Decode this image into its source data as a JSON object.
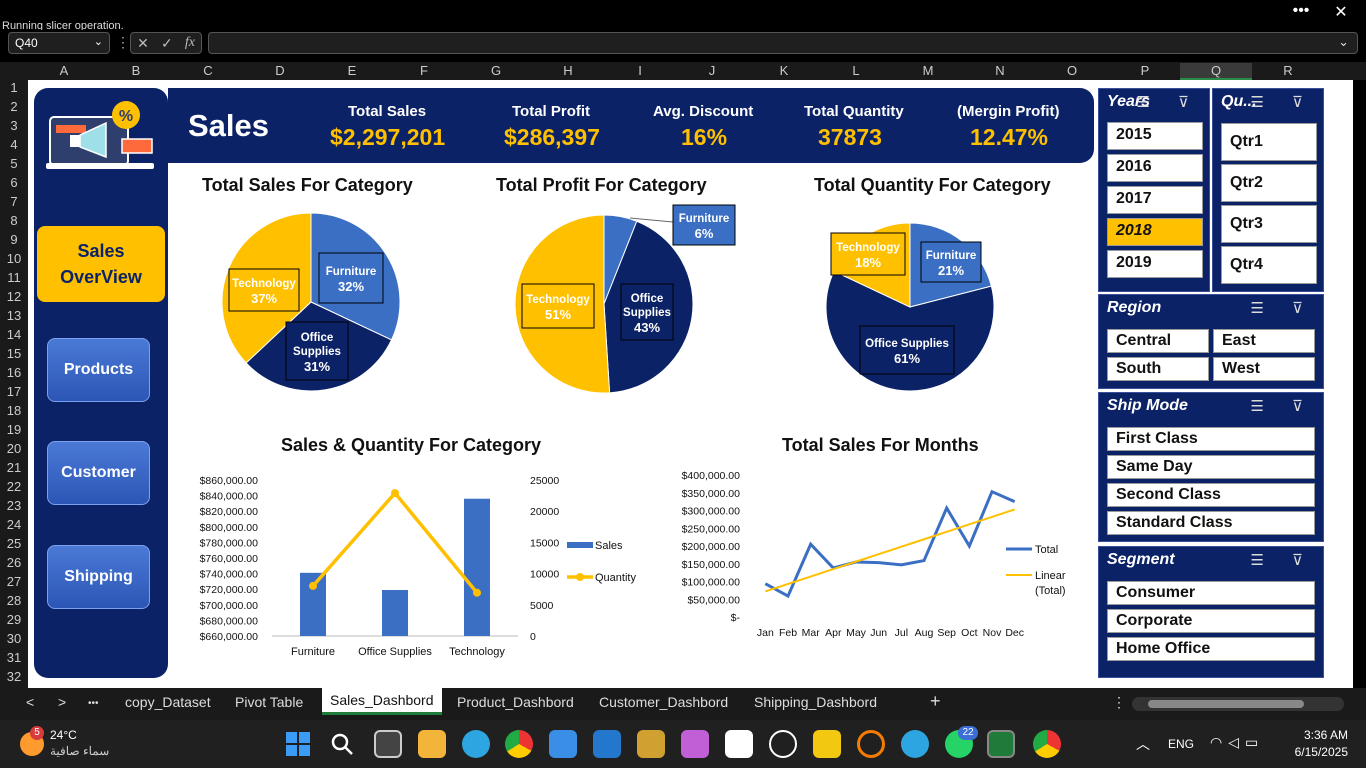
{
  "status": "Running slicer operation.",
  "window": {
    "more": "•••",
    "close": "✕"
  },
  "formula": {
    "namebox": "Q40",
    "dd": "⌄",
    "cancel": "✕",
    "enter": "✓",
    "fx": "fx",
    "expand": "⌄"
  },
  "columns": [
    "A",
    "B",
    "C",
    "D",
    "E",
    "F",
    "G",
    "H",
    "I",
    "J",
    "K",
    "L",
    "M",
    "N",
    "O",
    "P",
    "Q",
    "R"
  ],
  "rows": [
    "1",
    "2",
    "3",
    "4",
    "5",
    "6",
    "7",
    "8",
    "9",
    "10",
    "11",
    "12",
    "13",
    "14",
    "15",
    "16",
    "17",
    "18",
    "19",
    "20",
    "21",
    "22",
    "23",
    "24",
    "25",
    "26",
    "27",
    "28",
    "29",
    "30",
    "31",
    "32"
  ],
  "dashboard": {
    "title": "Sales",
    "nav": {
      "sales_overview": "Sales OverView",
      "products": "Products",
      "customer": "Customer",
      "shipping": "Shipping"
    },
    "kpis": [
      {
        "label": "Total Sales",
        "value": "$2,297,201"
      },
      {
        "label": "Total Profit",
        "value": "$286,397"
      },
      {
        "label": "Avg. Discount",
        "value": "16%"
      },
      {
        "label": "Total Quantity",
        "value": "37873"
      },
      {
        "label": "(Mergin Profit)",
        "value": "12.47%"
      }
    ]
  },
  "chart_data": [
    {
      "type": "pie",
      "title": "Total Sales For Category",
      "labels": [
        "Furniture",
        "Office Supplies",
        "Technology"
      ],
      "values": [
        32,
        31,
        37
      ],
      "value_labels": [
        "32%",
        "31%",
        "37%"
      ],
      "colors": [
        "#3a6fc4",
        "#0c2266",
        "#ffc000"
      ]
    },
    {
      "type": "pie",
      "title": "Total Profit For Category",
      "labels": [
        "Furniture",
        "Office Supplies",
        "Technology"
      ],
      "values": [
        6,
        43,
        51
      ],
      "value_labels": [
        "6%",
        "43%",
        "51%"
      ],
      "colors": [
        "#3a6fc4",
        "#0c2266",
        "#ffc000"
      ]
    },
    {
      "type": "pie",
      "title": "Total Quantity For Category",
      "labels": [
        "Furniture",
        "Office Supplies",
        "Technology"
      ],
      "values": [
        21,
        61,
        18
      ],
      "value_labels": [
        "21%",
        "61%",
        "18%"
      ],
      "colors": [
        "#3a6fc4",
        "#0c2266",
        "#ffc000"
      ]
    },
    {
      "type": "bar",
      "title": "Sales & Quantity For Category",
      "categories": [
        "Furniture",
        "Office Supplies",
        "Technology"
      ],
      "series": [
        {
          "name": "Sales",
          "type": "bar",
          "axis": "left",
          "values": [
            741000,
            719000,
            836000
          ],
          "color": "#3a6fc4"
        },
        {
          "name": "Quantity",
          "type": "line",
          "axis": "right",
          "values": [
            8028,
            22906,
            6939
          ],
          "color": "#ffc000"
        }
      ],
      "ylim": [
        660000,
        860000
      ],
      "y_ticks": [
        "$860,000.00",
        "$840,000.00",
        "$820,000.00",
        "$800,000.00",
        "$780,000.00",
        "$760,000.00",
        "$740,000.00",
        "$720,000.00",
        "$700,000.00",
        "$680,000.00",
        "$660,000.00"
      ],
      "y2lim": [
        0,
        25000
      ],
      "y2_ticks": [
        "25000",
        "20000",
        "15000",
        "10000",
        "5000",
        "0"
      ],
      "legend": [
        "Sales",
        "Quantity"
      ],
      "legend_position": "right"
    },
    {
      "type": "line",
      "title": "Total Sales For Months",
      "categories": [
        "Jan",
        "Feb",
        "Mar",
        "Apr",
        "May",
        "Jun",
        "Jul",
        "Aug",
        "Sep",
        "Oct",
        "Nov",
        "Dec"
      ],
      "series": [
        {
          "name": "Total",
          "values": [
            94000,
            59000,
            205000,
            138000,
            155000,
            153000,
            147000,
            159000,
            307000,
            200000,
            353000,
            325000
          ],
          "color": "#3a6fc4"
        },
        {
          "name": "Linear (Total)",
          "trendline": true,
          "values": [
            72000,
            93000,
            114000,
            135000,
            156000,
            177000,
            198000,
            219000,
            240000,
            261000,
            282000,
            303000
          ],
          "color": "#ffc000"
        }
      ],
      "ylim": [
        0,
        400000
      ],
      "y_ticks": [
        "$400,000.00",
        "$350,000.00",
        "$300,000.00",
        "$250,000.00",
        "$200,000.00",
        "$150,000.00",
        "$100,000.00",
        "$50,000.00",
        "$-"
      ],
      "legend": [
        "Total",
        "Linear",
        "(Total)"
      ],
      "legend_position": "right"
    }
  ],
  "slicers": {
    "years": {
      "title": "Years",
      "items": [
        "2015",
        "2016",
        "2017",
        "2018",
        "2019"
      ],
      "selected": "2018"
    },
    "quarters": {
      "title": "Qu...",
      "items": [
        "Qtr1",
        "Qtr2",
        "Qtr3",
        "Qtr4"
      ]
    },
    "region": {
      "title": "Region",
      "items": [
        "Central",
        "East",
        "South",
        "West"
      ]
    },
    "ship_mode": {
      "title": "Ship Mode",
      "items": [
        "First Class",
        "Same Day",
        "Second Class",
        "Standard Class"
      ]
    },
    "segment": {
      "title": "Segment",
      "items": [
        "Consumer",
        "Corporate",
        "Home Office"
      ]
    }
  },
  "tabs": {
    "prev": "<",
    "next": ">",
    "more": "•••",
    "items": [
      "copy_Dataset",
      "Pivot Table",
      "Sales_Dashbord",
      "Product_Dashbord",
      "Customer_Dashbord",
      "Shipping_Dashbord"
    ],
    "active": "Sales_Dashbord",
    "add": "+",
    "options": "⋮"
  },
  "taskbar": {
    "weather_badge": "5",
    "temp": "24°C",
    "condition": "سماء صافية",
    "whatsapp_badge": "22",
    "lang": "ENG",
    "time": "3:36 AM",
    "date": "6/15/2025",
    "icon_colors": {
      "windows": "#3b9cf5",
      "excel": "#1e7b3a",
      "chrome": "#e0b000",
      "edge": "#2ca5e0"
    }
  }
}
